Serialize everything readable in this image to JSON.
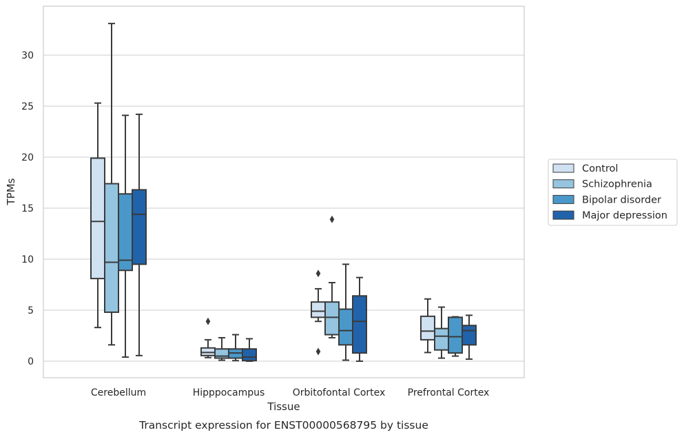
{
  "chart_data": {
    "type": "boxplot",
    "xlabel": "Tissue",
    "ylabel": "TPMs",
    "caption": "Transcript expression for ENST00000568795 by tissue",
    "ylim": [
      -1.6,
      34.5
    ],
    "yticks": [
      0,
      5,
      10,
      15,
      20,
      25,
      30
    ],
    "grid": "horizontal",
    "legend_position": "right, outside plot",
    "categories": [
      "Cerebellum",
      "Hipppocampus",
      "Orbitofontal Cortex",
      "Prefrontal Cortex"
    ],
    "series": [
      {
        "name": "Control",
        "color": "#d0e1f2",
        "boxes": [
          {
            "whislo": 3.3,
            "q1": 8.1,
            "med": 13.7,
            "q3": 19.9,
            "whishi": 25.3,
            "fliers": []
          },
          {
            "whislo": 0.35,
            "q1": 0.55,
            "med": 0.85,
            "q3": 1.3,
            "whishi": 2.1,
            "fliers": [
              3.9
            ]
          },
          {
            "whislo": 3.9,
            "q1": 4.3,
            "med": 4.9,
            "q3": 5.8,
            "whishi": 7.1,
            "fliers": [
              0.95,
              8.6
            ]
          },
          {
            "whislo": 0.85,
            "q1": 2.1,
            "med": 2.95,
            "q3": 4.4,
            "whishi": 6.1,
            "fliers": []
          }
        ]
      },
      {
        "name": "Schizophrenia",
        "color": "#94c4df",
        "boxes": [
          {
            "whislo": 1.6,
            "q1": 4.8,
            "med": 9.7,
            "q3": 17.4,
            "whishi": 33.1,
            "fliers": []
          },
          {
            "whislo": 0.1,
            "q1": 0.3,
            "med": 0.5,
            "q3": 1.2,
            "whishi": 2.3,
            "fliers": []
          },
          {
            "whislo": 2.3,
            "q1": 2.6,
            "med": 4.3,
            "q3": 5.8,
            "whishi": 7.7,
            "fliers": [
              13.9
            ]
          },
          {
            "whislo": 0.3,
            "q1": 1.1,
            "med": 2.45,
            "q3": 3.2,
            "whishi": 5.3,
            "fliers": []
          }
        ]
      },
      {
        "name": "Bipolar disorder",
        "color": "#4a98c9",
        "boxes": [
          {
            "whislo": 0.4,
            "q1": 8.9,
            "med": 9.9,
            "q3": 16.4,
            "whishi": 24.1,
            "fliers": []
          },
          {
            "whislo": 0.05,
            "q1": 0.3,
            "med": 0.8,
            "q3": 1.2,
            "whishi": 2.6,
            "fliers": []
          },
          {
            "whislo": 0.1,
            "q1": 1.6,
            "med": 3.0,
            "q3": 5.1,
            "whishi": 9.5,
            "fliers": []
          },
          {
            "whislo": 0.5,
            "q1": 0.8,
            "med": 2.4,
            "q3": 4.3,
            "whishi": 4.35,
            "fliers": []
          }
        ]
      },
      {
        "name": "Major depression",
        "color": "#2163aa",
        "boxes": [
          {
            "whislo": 0.55,
            "q1": 9.5,
            "med": 14.4,
            "q3": 16.8,
            "whishi": 24.2,
            "fliers": []
          },
          {
            "whislo": 0.0,
            "q1": 0.05,
            "med": 0.4,
            "q3": 1.2,
            "whishi": 2.2,
            "fliers": []
          },
          {
            "whislo": 0.0,
            "q1": 0.8,
            "med": 3.9,
            "q3": 6.4,
            "whishi": 8.2,
            "fliers": []
          },
          {
            "whislo": 0.2,
            "q1": 1.6,
            "med": 3.0,
            "q3": 3.5,
            "whishi": 4.5,
            "fliers": []
          }
        ]
      }
    ]
  }
}
